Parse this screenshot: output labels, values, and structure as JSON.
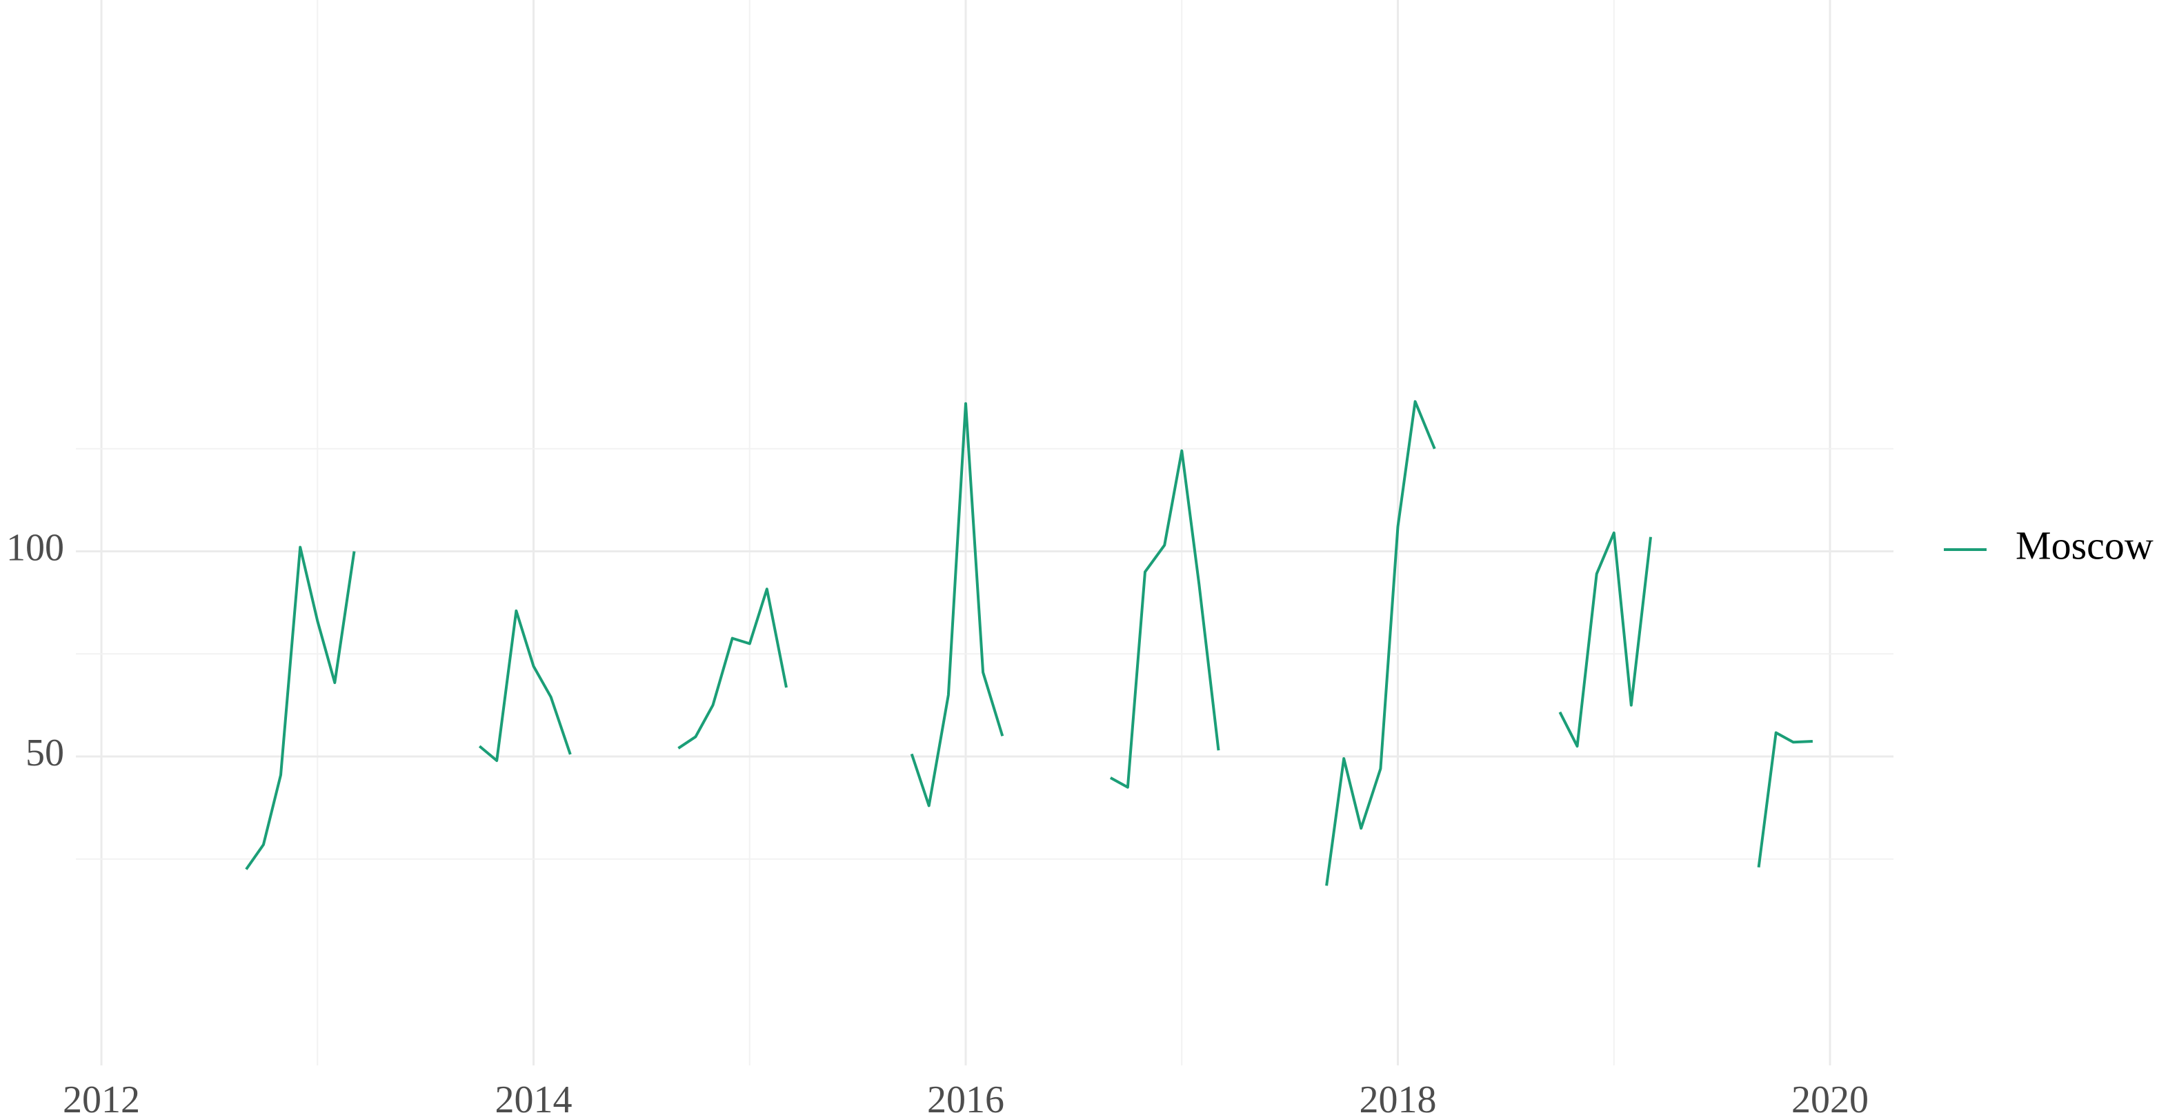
{
  "chart_data": {
    "type": "line",
    "title": "",
    "xlabel": "",
    "ylabel": "",
    "x_ticks": [
      "2012",
      "2014",
      "2016",
      "2018",
      "2020"
    ],
    "y_ticks": [
      "50",
      "100"
    ],
    "xlim": [
      2012,
      2020.3
    ],
    "ylim": [
      17,
      142
    ],
    "grid": true,
    "legend": {
      "position": "right",
      "entries": [
        "Moscow"
      ]
    },
    "colors": {
      "Moscow": "#1b9e77"
    },
    "series": [
      {
        "name": "Moscow",
        "segments": [
          [
            [
              2012.67,
              22.5
            ],
            [
              2012.75,
              28.5
            ],
            [
              2012.83,
              45.5
            ],
            [
              2012.92,
              101
            ],
            [
              2013.0,
              83
            ],
            [
              2013.08,
              68
            ],
            [
              2013.17,
              100
            ]
          ],
          [
            [
              2013.75,
              52.5
            ],
            [
              2013.83,
              49
            ],
            [
              2013.92,
              85.5
            ],
            [
              2014.0,
              72
            ],
            [
              2014.08,
              64.5
            ],
            [
              2014.17,
              50.5
            ]
          ],
          [
            [
              2014.67,
              52
            ],
            [
              2014.75,
              54.8
            ],
            [
              2014.83,
              62.5
            ],
            [
              2014.92,
              78.8
            ],
            [
              2015.0,
              77.5
            ],
            [
              2015.08,
              90.8
            ],
            [
              2015.17,
              66.8
            ]
          ],
          [
            [
              2015.75,
              50.6
            ],
            [
              2015.83,
              38
            ],
            [
              2015.92,
              65
            ],
            [
              2016.0,
              136
            ],
            [
              2016.08,
              70.5
            ],
            [
              2016.17,
              55
            ]
          ],
          [
            [
              2016.67,
              44.8
            ],
            [
              2016.75,
              42.5
            ],
            [
              2016.83,
              95
            ],
            [
              2016.92,
              101.5
            ],
            [
              2017.0,
              124.5
            ],
            [
              2017.08,
              92
            ],
            [
              2017.17,
              51.5
            ]
          ],
          [
            [
              2017.67,
              18.5
            ],
            [
              2017.75,
              49.5
            ],
            [
              2017.83,
              32.5
            ],
            [
              2017.92,
              47
            ],
            [
              2018.0,
              106
            ],
            [
              2018.08,
              136.5
            ],
            [
              2018.17,
              125
            ]
          ],
          [
            [
              2018.75,
              60.8
            ],
            [
              2018.83,
              52.5
            ],
            [
              2018.92,
              94.5
            ],
            [
              2019.0,
              104.5
            ],
            [
              2019.08,
              62.5
            ],
            [
              2019.17,
              103.5
            ]
          ],
          [
            [
              2019.67,
              23
            ],
            [
              2019.75,
              55.8
            ],
            [
              2019.83,
              53.5
            ],
            [
              2019.92,
              53.7
            ]
          ]
        ]
      }
    ]
  }
}
